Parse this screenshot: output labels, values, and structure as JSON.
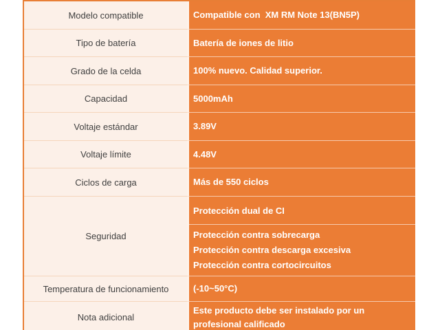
{
  "table": {
    "accent_orange": "#EB7D35",
    "label_bg": "#FCF0E8",
    "label_text_color": "#3F3F3F",
    "value_text_color": "#FFFFFF",
    "rows": [
      {
        "label": "Modelo compatible",
        "value": "Compatible con  XM RM Note 13(BN5P)"
      },
      {
        "label": "Tipo de batería",
        "value": "Batería de iones de litio"
      },
      {
        "label": "Grado de la celda",
        "value": "100% nuevo. Calidad superior."
      },
      {
        "label": "Capacidad",
        "value": "5000mAh"
      },
      {
        "label": "Voltaje estándar",
        "value": "3.89V"
      },
      {
        "label": "Voltaje límite",
        "value": "4.48V"
      },
      {
        "label": "Ciclos de carga",
        "value": "Más de 550 ciclos"
      },
      {
        "label": "Seguridad",
        "value_top": "Protección dual de CI",
        "value_lines": [
          "Protección contra sobrecarga",
          "Protección contra descarga excesiva",
          "Protección contra cortocircuitos"
        ]
      },
      {
        "label": "Temperatura de funcionamiento",
        "value": "(-10~50°C)"
      },
      {
        "label": "Nota adicional",
        "value": "Este producto debe ser instalado por un profesional calificado"
      }
    ]
  }
}
